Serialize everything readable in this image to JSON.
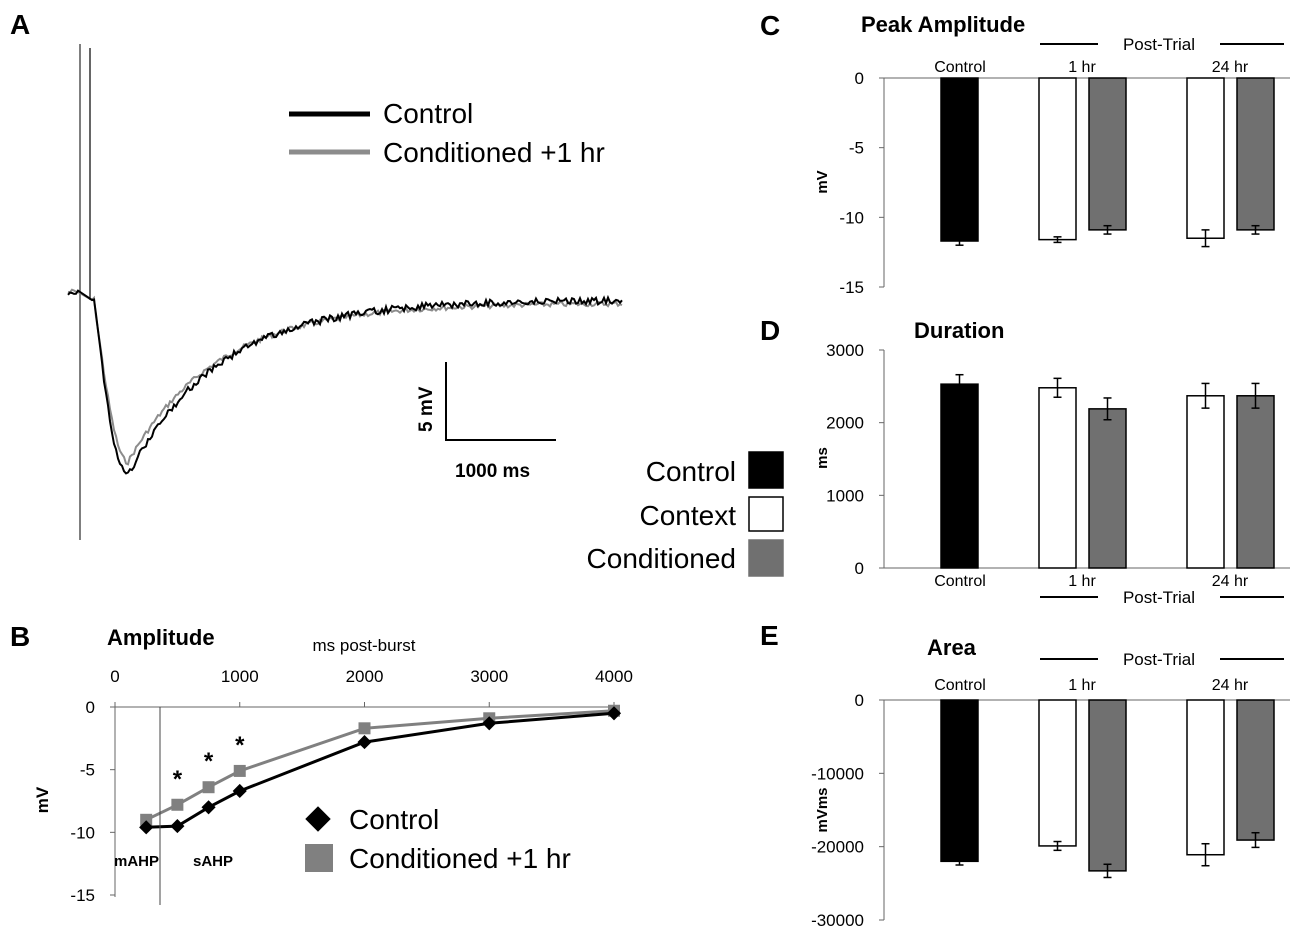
{
  "panels": {
    "A": {
      "label": "A",
      "legend": [
        {
          "name": "Control",
          "color": "#000000"
        },
        {
          "name": "Conditioned +1 hr",
          "color": "#8c8c8c"
        }
      ],
      "scalebar": {
        "v_label": "5 mV",
        "h_label": "1000 ms"
      },
      "group_legend": [
        {
          "name": "Control",
          "fill": "#000000"
        },
        {
          "name": "Context",
          "fill": "#ffffff"
        },
        {
          "name": "Conditioned",
          "fill": "#707070"
        }
      ]
    },
    "B": {
      "label": "B",
      "title": "Amplitude",
      "xlabel": "ms post-burst",
      "ylabel": "mV",
      "annot_m": "mAHP",
      "annot_s": "sAHP",
      "star": "*",
      "legend": [
        {
          "name": "Control"
        },
        {
          "name": "Conditioned +1 hr"
        }
      ]
    },
    "C": {
      "label": "C",
      "title": "Peak Amplitude",
      "ylabel": "mV",
      "bracket": "Post-Trial"
    },
    "D": {
      "label": "D",
      "title": "Duration",
      "ylabel": "ms",
      "bracket": "Post-Trial"
    },
    "E": {
      "label": "E",
      "title": "Area",
      "ylabel": "mVms",
      "bracket": "Post-Trial"
    }
  },
  "chart_data": [
    {
      "panel": "B",
      "type": "line",
      "title": "Amplitude",
      "xlabel": "ms post-burst",
      "ylabel": "mV",
      "xlim": [
        0,
        4000
      ],
      "ylim": [
        -15,
        0
      ],
      "xticks": [
        0,
        1000,
        2000,
        3000,
        4000
      ],
      "yticks": [
        0,
        -5,
        -10,
        -15
      ],
      "series": [
        {
          "name": "Control",
          "color": "#000000",
          "marker": "diamond",
          "x": [
            250,
            500,
            750,
            1000,
            2000,
            3000,
            4000
          ],
          "y": [
            -9.6,
            -9.5,
            -8.0,
            -6.7,
            -2.8,
            -1.3,
            -0.5
          ],
          "err": [
            0.2,
            0.3,
            0.3,
            0.3,
            0.2,
            0.2,
            0.1
          ]
        },
        {
          "name": "Conditioned +1 hr",
          "color": "#808080",
          "marker": "square",
          "x": [
            250,
            500,
            750,
            1000,
            2000,
            3000,
            4000
          ],
          "y": [
            -9.0,
            -7.8,
            -6.4,
            -5.1,
            -1.7,
            -0.9,
            -0.3
          ],
          "err": [
            0.2,
            0.3,
            0.3,
            0.4,
            0.2,
            0.2,
            0.1
          ]
        }
      ],
      "significant_x": [
        500,
        750,
        1000
      ]
    },
    {
      "panel": "C",
      "type": "bar",
      "title": "Peak Amplitude",
      "ylabel": "mV",
      "ylim": [
        -15,
        0
      ],
      "yticks": [
        0,
        -5,
        -10,
        -15
      ],
      "categories": [
        "Control",
        "1 hr",
        "24 hr"
      ],
      "bars": [
        {
          "group": "Control",
          "category": "Control",
          "value": -11.7,
          "err": 0.3
        },
        {
          "group": "Context",
          "category": "1 hr",
          "value": -11.6,
          "err": 0.2
        },
        {
          "group": "Conditioned",
          "category": "1 hr",
          "value": -10.9,
          "err": 0.3
        },
        {
          "group": "Context",
          "category": "24 hr",
          "value": -11.5,
          "err": 0.6
        },
        {
          "group": "Conditioned",
          "category": "24 hr",
          "value": -10.9,
          "err": 0.3
        }
      ]
    },
    {
      "panel": "D",
      "type": "bar",
      "title": "Duration",
      "ylabel": "ms",
      "ylim": [
        0,
        3000
      ],
      "yticks": [
        0,
        1000,
        2000,
        3000
      ],
      "categories": [
        "Control",
        "1 hr",
        "24 hr"
      ],
      "bars": [
        {
          "group": "Control",
          "category": "Control",
          "value": 2530,
          "err": 130
        },
        {
          "group": "Context",
          "category": "1 hr",
          "value": 2480,
          "err": 130
        },
        {
          "group": "Conditioned",
          "category": "1 hr",
          "value": 2190,
          "err": 150
        },
        {
          "group": "Context",
          "category": "24 hr",
          "value": 2370,
          "err": 170
        },
        {
          "group": "Conditioned",
          "category": "24 hr",
          "value": 2370,
          "err": 170
        }
      ]
    },
    {
      "panel": "E",
      "type": "bar",
      "title": "Area",
      "ylabel": "mVms",
      "ylim": [
        -30000,
        0
      ],
      "yticks": [
        0,
        -10000,
        -20000,
        -30000
      ],
      "categories": [
        "Control",
        "1 hr",
        "24 hr"
      ],
      "bars": [
        {
          "group": "Control",
          "category": "Control",
          "value": -22000,
          "err": 500
        },
        {
          "group": "Context",
          "category": "1 hr",
          "value": -19900,
          "err": 600
        },
        {
          "group": "Conditioned",
          "category": "1 hr",
          "value": -23300,
          "err": 900
        },
        {
          "group": "Context",
          "category": "24 hr",
          "value": -21100,
          "err": 1500
        },
        {
          "group": "Conditioned",
          "category": "24 hr",
          "value": -19100,
          "err": 1000
        }
      ]
    }
  ]
}
